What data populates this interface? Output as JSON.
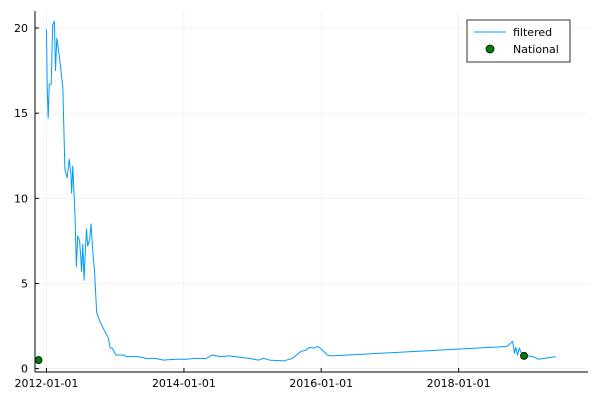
{
  "chart_data": {
    "type": "line",
    "x_axis": {
      "type": "date",
      "range": [
        "2011-11-01",
        "2019-11-20"
      ],
      "tick_labels": [
        "2012-01-01",
        "2014-01-01",
        "2016-01-01",
        "2018-01-01"
      ]
    },
    "y_axis": {
      "range": [
        -0.2,
        21
      ],
      "tick_labels": [
        "0",
        "5",
        "10",
        "15",
        "20"
      ]
    },
    "grid": true,
    "legend": {
      "placement": "top-right",
      "entries": [
        {
          "label": "filtered",
          "marker": "line",
          "color": "#009AFA"
        },
        {
          "label": "National",
          "marker": "circle",
          "color": "#008000"
        }
      ]
    },
    "series": [
      {
        "name": "filtered",
        "color": "#009AFA",
        "kind": "line",
        "points": [
          [
            "2012-01-01",
            19.9
          ],
          [
            "2012-01-05",
            16.5
          ],
          [
            "2012-01-10",
            14.7
          ],
          [
            "2012-01-16",
            16.7
          ],
          [
            "2012-01-26",
            16.7
          ],
          [
            "2012-02-03",
            20.2
          ],
          [
            "2012-02-12",
            20.4
          ],
          [
            "2012-02-18",
            17.5
          ],
          [
            "2012-02-25",
            19.4
          ],
          [
            "2012-03-10",
            18.3
          ],
          [
            "2012-03-28",
            16.5
          ],
          [
            "2012-04-08",
            11.7
          ],
          [
            "2012-04-20",
            11.2
          ],
          [
            "2012-05-01",
            12.3
          ],
          [
            "2012-05-10",
            11.4
          ],
          [
            "2012-05-14",
            10.3
          ],
          [
            "2012-05-20",
            11.9
          ],
          [
            "2012-06-01",
            8.9
          ],
          [
            "2012-06-08",
            6.0
          ],
          [
            "2012-06-15",
            7.8
          ],
          [
            "2012-06-25",
            7.5
          ],
          [
            "2012-07-01",
            6.6
          ],
          [
            "2012-07-06",
            5.7
          ],
          [
            "2012-07-12",
            7.3
          ],
          [
            "2012-07-19",
            5.2
          ],
          [
            "2012-07-26",
            7.0
          ],
          [
            "2012-08-01",
            8.2
          ],
          [
            "2012-08-07",
            7.2
          ],
          [
            "2012-08-18",
            7.6
          ],
          [
            "2012-08-25",
            8.5
          ],
          [
            "2012-09-04",
            6.8
          ],
          [
            "2012-09-12",
            5.8
          ],
          [
            "2012-09-24",
            3.3
          ],
          [
            "2012-10-10",
            2.8
          ],
          [
            "2012-11-01",
            2.3
          ],
          [
            "2012-11-25",
            1.8
          ],
          [
            "2012-12-05",
            1.2
          ],
          [
            "2012-12-15",
            1.2
          ],
          [
            "2013-01-05",
            0.8
          ],
          [
            "2013-02-15",
            0.8
          ],
          [
            "2013-03-01",
            0.7
          ],
          [
            "2013-05-01",
            0.7
          ],
          [
            "2013-06-15",
            0.6
          ],
          [
            "2013-08-01",
            0.6
          ],
          [
            "2013-09-15",
            0.5
          ],
          [
            "2013-11-15",
            0.55
          ],
          [
            "2014-01-15",
            0.55
          ],
          [
            "2014-03-01",
            0.6
          ],
          [
            "2014-05-01",
            0.6
          ],
          [
            "2014-06-01",
            0.8
          ],
          [
            "2014-07-15",
            0.7
          ],
          [
            "2014-09-01",
            0.75
          ],
          [
            "2014-11-01",
            0.65
          ],
          [
            "2014-12-15",
            0.6
          ],
          [
            "2015-02-01",
            0.5
          ],
          [
            "2015-03-01",
            0.6
          ],
          [
            "2015-04-01",
            0.5
          ],
          [
            "2015-06-15",
            0.45
          ],
          [
            "2015-08-01",
            0.6
          ],
          [
            "2015-09-15",
            1.0
          ],
          [
            "2015-10-15",
            1.1
          ],
          [
            "2015-11-01",
            1.25
          ],
          [
            "2015-11-20",
            1.2
          ],
          [
            "2015-12-15",
            1.3
          ],
          [
            "2016-01-01",
            1.15
          ],
          [
            "2016-01-15",
            1.0
          ],
          [
            "2016-02-01",
            0.8
          ],
          [
            "2016-03-01",
            0.75
          ],
          [
            "2018-09-15",
            1.3
          ],
          [
            "2018-10-15",
            1.6
          ],
          [
            "2018-10-25",
            0.9
          ],
          [
            "2018-11-01",
            1.25
          ],
          [
            "2018-11-10",
            0.8
          ],
          [
            "2018-11-20",
            1.2
          ],
          [
            "2018-12-01",
            0.9
          ],
          [
            "2018-12-10",
            0.85
          ],
          [
            "2019-01-01",
            0.75
          ],
          [
            "2019-02-01",
            0.7
          ],
          [
            "2019-03-01",
            0.55
          ],
          [
            "2019-04-01",
            0.6
          ],
          [
            "2019-05-01",
            0.65
          ],
          [
            "2019-06-01",
            0.7
          ]
        ]
      },
      {
        "name": "National",
        "color": "#008000",
        "kind": "scatter",
        "points": [
          [
            "2011-11-20",
            0.5
          ],
          [
            "2018-12-15",
            0.75
          ]
        ]
      }
    ]
  }
}
